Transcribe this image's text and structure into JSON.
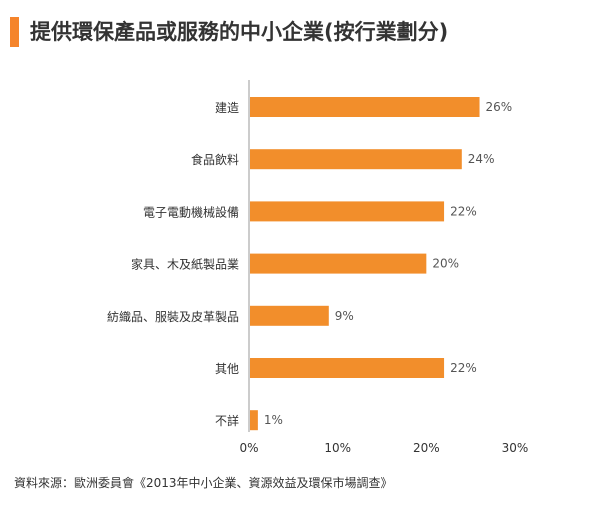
{
  "title": "提供環保產品或服務的中小企業(按行業劃分)",
  "source": "資料來源：歐洲委員會《2013年中小企業、資源效益及環保市場調查》",
  "colors": {
    "accent": "#f5842b",
    "bar": "#f28e2b",
    "axis": "#999999",
    "text": "#333333"
  },
  "chart_data": {
    "type": "bar",
    "orientation": "horizontal",
    "categories": [
      "建造",
      "食品飲料",
      "電子電動機械設備",
      "家具、木及紙製品業",
      "紡織品、服裝及皮革製品",
      "其他",
      "不詳"
    ],
    "values": [
      26,
      24,
      22,
      20,
      9,
      22,
      1
    ],
    "value_labels": [
      "26%",
      "24%",
      "22%",
      "20%",
      "9%",
      "22%",
      "1%"
    ],
    "xlim": [
      0,
      30
    ],
    "xticks": [
      0,
      10,
      20,
      30
    ],
    "xtick_labels": [
      "0%",
      "10%",
      "20%",
      "30%"
    ],
    "grid": false,
    "legend": "none"
  }
}
